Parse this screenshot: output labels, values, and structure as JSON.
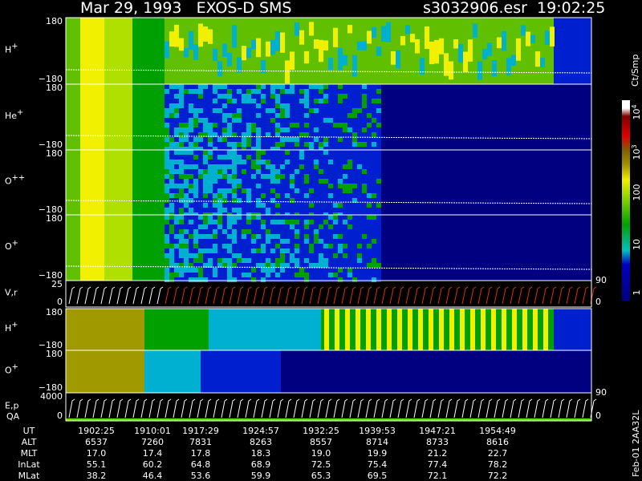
{
  "header": {
    "title": "Mar 29, 1993   EXOS-D SMS",
    "file": "s3032906.esr  19:02:25"
  },
  "panels": [
    {
      "label": "H",
      "sup": "+",
      "ticks": [
        "180",
        "−180"
      ]
    },
    {
      "label": "He",
      "sup": "+",
      "ticks": [
        "180",
        "−180"
      ]
    },
    {
      "label": "O",
      "sup": "++",
      "ticks": [
        "180",
        "−180"
      ]
    },
    {
      "label": "O",
      "sup": "+",
      "ticks": [
        "180",
        "−180"
      ]
    },
    {
      "label": "V,r",
      "ticks": [
        "25",
        "0"
      ],
      "right_ticks": [
        "90",
        "0"
      ]
    },
    {
      "label": "H",
      "sup": "+",
      "ticks": [
        "180",
        "−180"
      ]
    },
    {
      "label": "O",
      "sup": "+",
      "ticks": [
        "180",
        "−180"
      ]
    },
    {
      "label": "E,p",
      "label2": "QA",
      "ticks": [
        "4000",
        "0"
      ],
      "right_ticks": [
        "90",
        "0"
      ]
    }
  ],
  "colorbar": {
    "title": "Ct/Smp",
    "labels": [
      {
        "base": "10",
        "sup": "4"
      },
      {
        "base": "10",
        "sup": "3"
      },
      {
        "base": "100"
      },
      {
        "base": "10"
      },
      {
        "base": "1"
      }
    ]
  },
  "table": {
    "rows": [
      [
        "UT",
        "1902:25",
        "1910:01",
        "1917:29",
        "1924:57",
        "1932:25",
        "1939:53",
        "1947:21",
        "1954:49"
      ],
      [
        "ALT",
        "6537",
        "7260",
        "7831",
        "8263",
        "8557",
        "8714",
        "8733",
        "8616"
      ],
      [
        "MLT",
        "17.0",
        "17.4",
        "17.8",
        "18.3",
        "19.0",
        "19.9",
        "21.2",
        "22.7"
      ],
      [
        "InLat",
        "55.1",
        "60.2",
        "64.8",
        "68.9",
        "72.5",
        "75.4",
        "77.4",
        "78.2"
      ],
      [
        "MLat",
        "38.2",
        "46.4",
        "53.6",
        "59.9",
        "65.3",
        "69.5",
        "72.1",
        "72.2"
      ]
    ]
  },
  "footer": "Feb-01 2AA32L"
}
